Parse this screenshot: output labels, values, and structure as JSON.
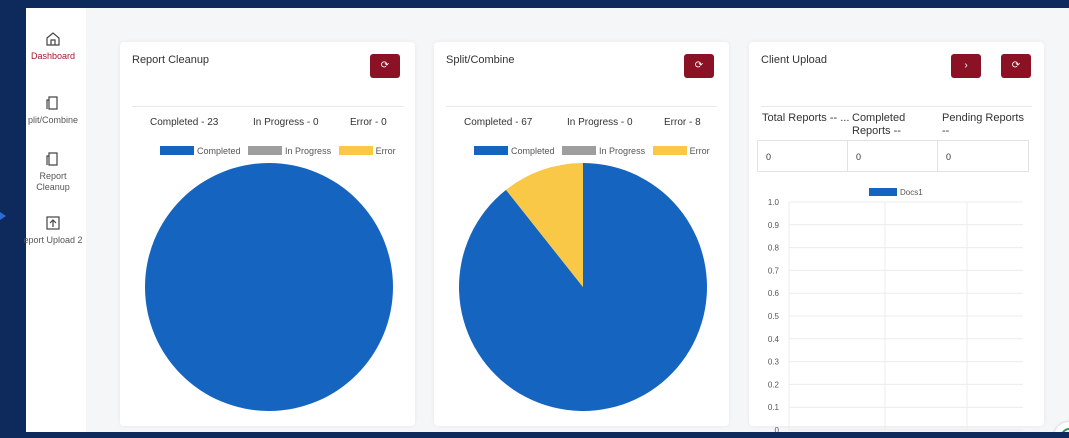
{
  "sidebar": {
    "items": [
      {
        "label": "Dashboard",
        "icon": "home-icon",
        "active": true
      },
      {
        "label": "plit/Combine",
        "icon": "document-icon"
      },
      {
        "label": "Report Cleanup",
        "icon": "document-icon"
      },
      {
        "label": "eport Upload 2",
        "icon": "upload-icon"
      }
    ]
  },
  "colors": {
    "accent": "#8b1225",
    "completed": "#1565c0",
    "in_progress": "#9e9e9e",
    "error": "#f9c846",
    "docs1": "#1565c0"
  },
  "report_cleanup": {
    "title": "Report Cleanup",
    "refresh_icon": "refresh-icon",
    "stats": {
      "completed": "Completed - 23",
      "in_progress": "In Progress - 0",
      "error": "Error - 0"
    },
    "legend": [
      "Completed",
      "In Progress",
      "Error"
    ]
  },
  "split_combine": {
    "title": "Split/Combine",
    "refresh_icon": "refresh-icon",
    "stats": {
      "completed": "Completed - 67",
      "in_progress": "In Progress - 0",
      "error": "Error - 8"
    },
    "legend": [
      "Completed",
      "In Progress",
      "Error"
    ]
  },
  "client_upload": {
    "title": "Client Upload",
    "next_icon": "chevron-right-icon",
    "refresh_icon": "refresh-icon",
    "headers": [
      "Total Reports -- ...",
      "Completed Reports --",
      "Pending Reports --"
    ],
    "values": [
      "0",
      "0",
      "0"
    ],
    "legend": "Docs1"
  },
  "chart_data": [
    {
      "type": "pie",
      "title": "",
      "labels": [
        "Completed",
        "In Progress",
        "Error"
      ],
      "values": [
        23,
        0,
        0
      ]
    },
    {
      "type": "pie",
      "title": "",
      "labels": [
        "Completed",
        "In Progress",
        "Error"
      ],
      "values": [
        67,
        0,
        8
      ]
    },
    {
      "type": "bar",
      "title": "",
      "series": [
        {
          "name": "Docs1",
          "values": []
        }
      ],
      "ylim": [
        0,
        1.0
      ],
      "yticks": [
        "1.0",
        "0.9",
        "0.8",
        "0.7",
        "0.6",
        "0.5",
        "0.4",
        "0.3",
        "0.2",
        "0.1",
        "0"
      ],
      "grid": true,
      "legend": "top-center"
    }
  ]
}
